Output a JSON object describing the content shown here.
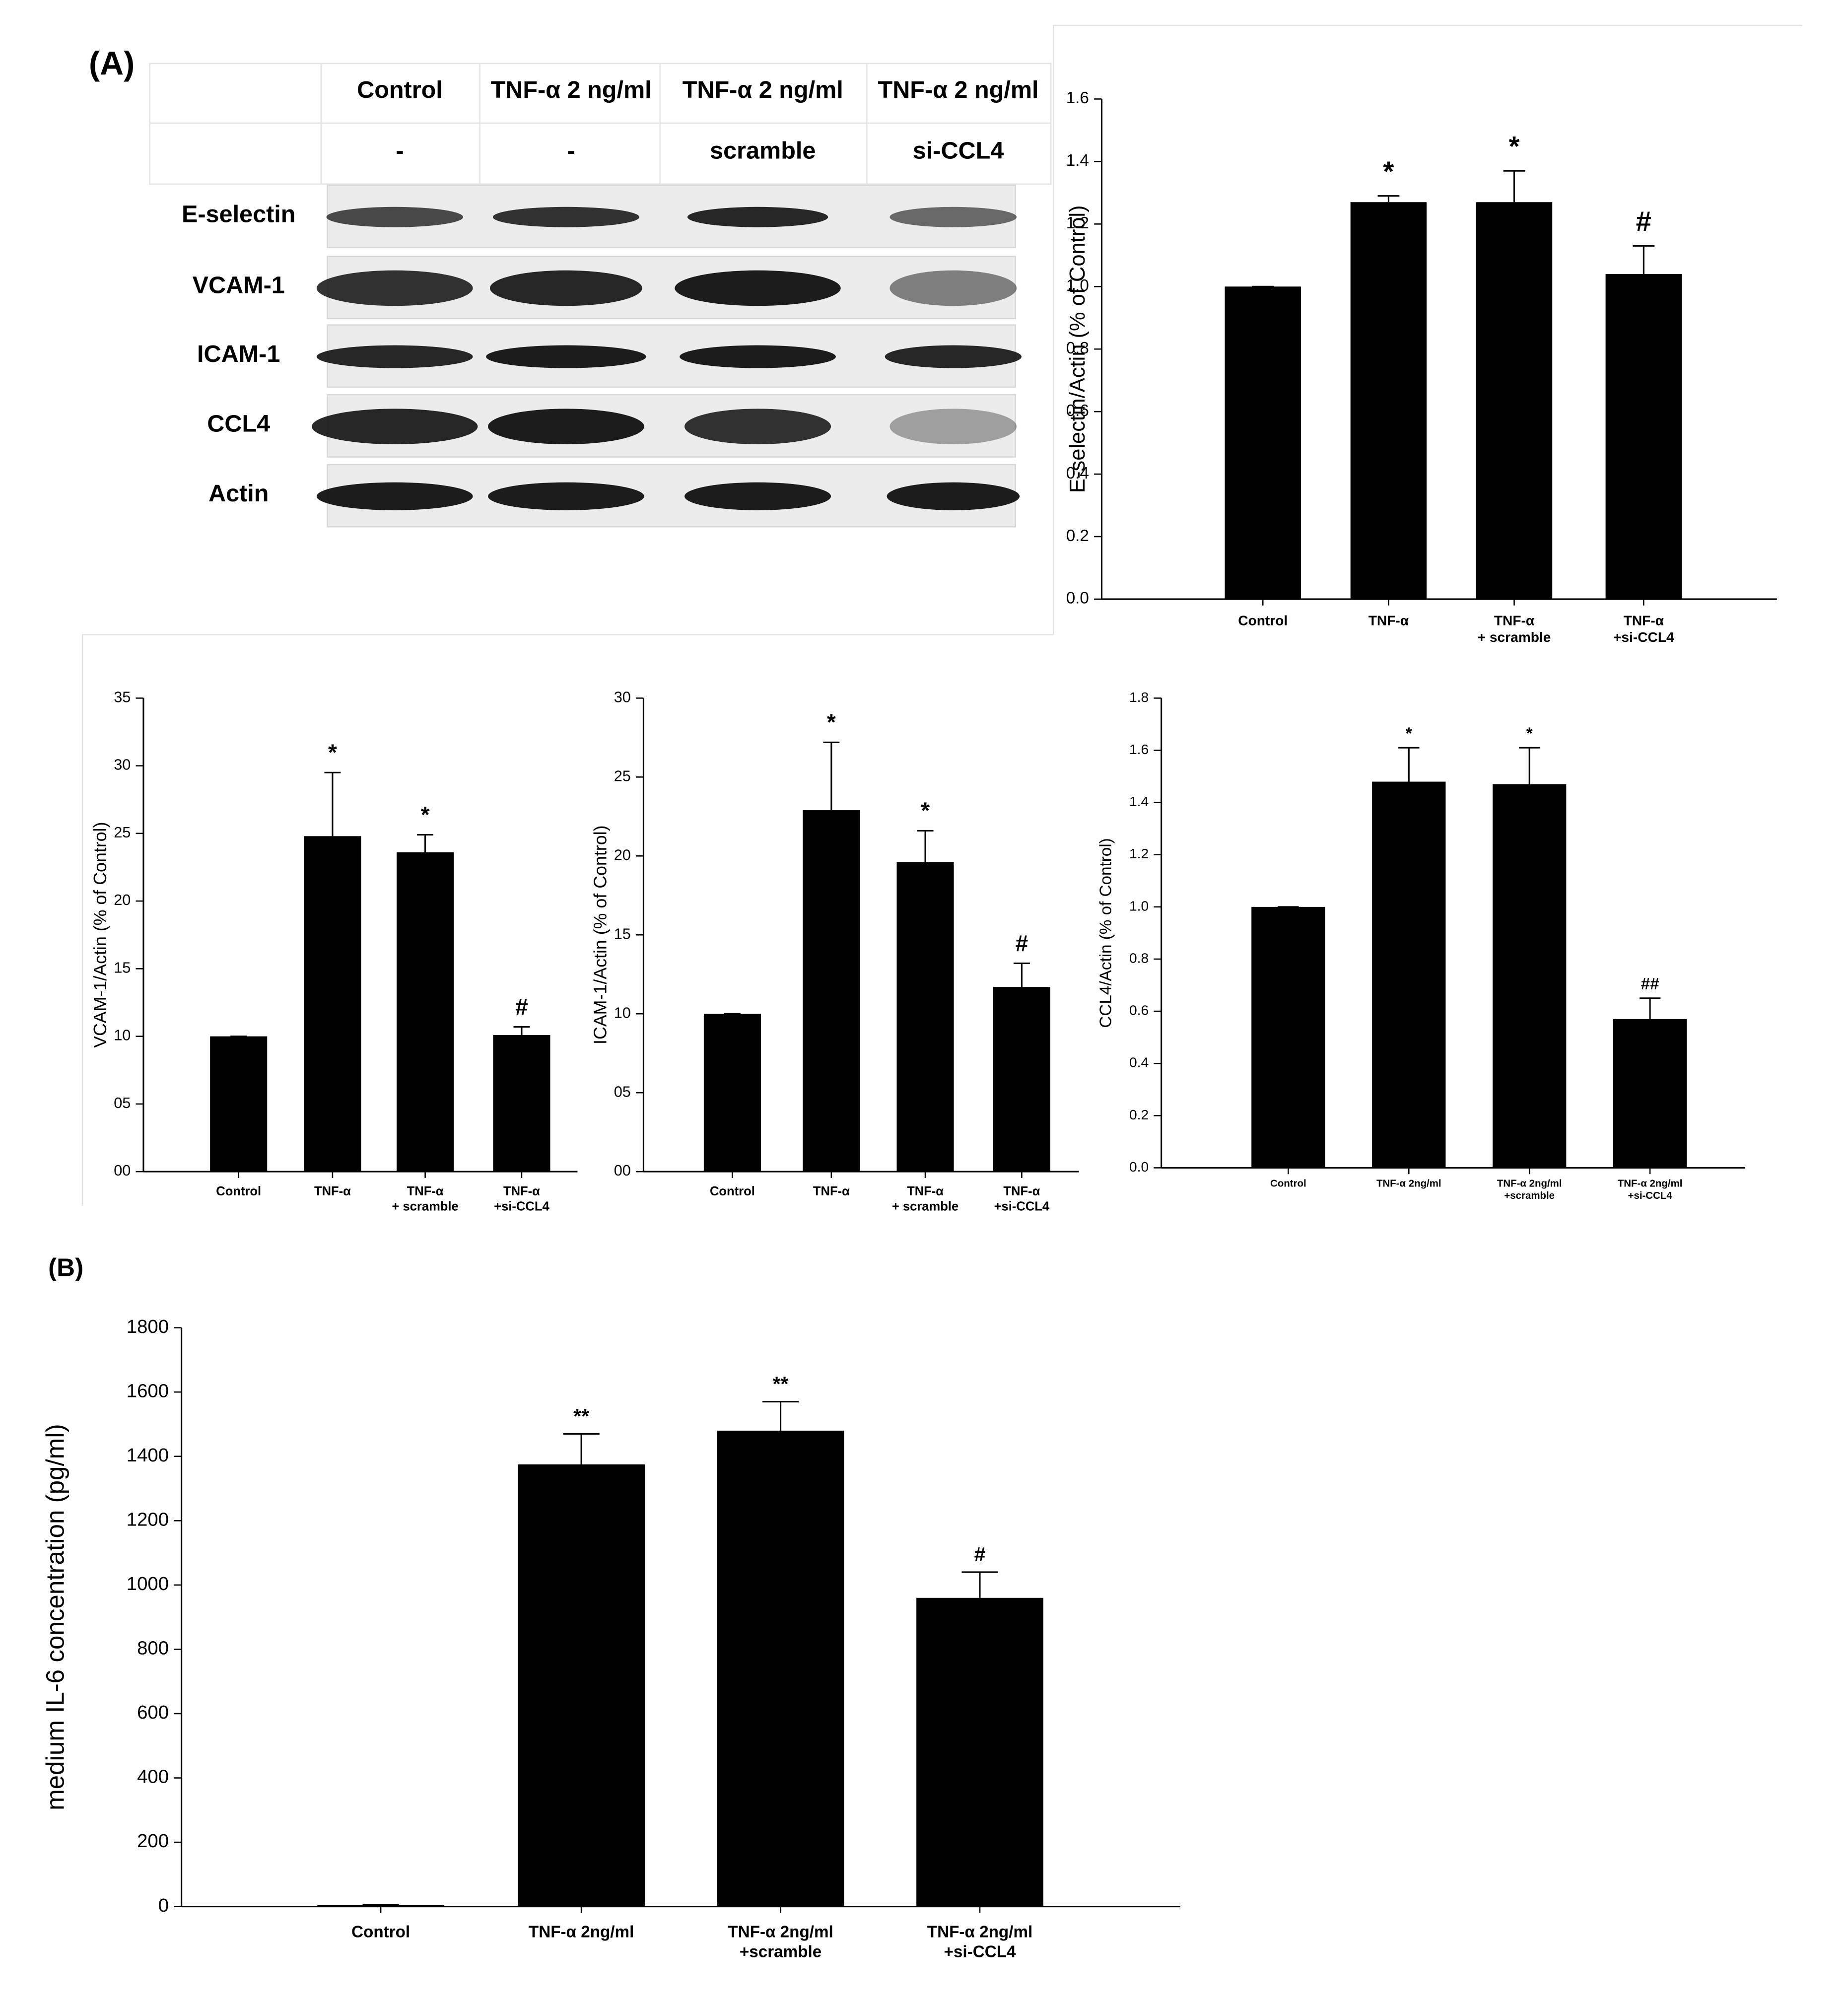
{
  "panel_labels": [
    "(A)",
    "(B)"
  ],
  "blot": {
    "columns": [
      "Control",
      "TNF-α 2 ng/ml",
      "TNF-α 2 ng/ml",
      "TNF-α 2 ng/ml"
    ],
    "treatment": [
      "-",
      "-",
      "scramble",
      "si-CCL4"
    ],
    "rows": [
      "E-selectin",
      "VCAM-1",
      "ICAM-1",
      "CCL4",
      "Actin"
    ]
  },
  "chart_data": [
    {
      "type": "bar",
      "y_label": "E-selectin/Actin (% of Control)",
      "categories": [
        [
          "Control"
        ],
        [
          "TNF-α"
        ],
        [
          "TNF-α",
          "+ scramble"
        ],
        [
          "TNF-α",
          "+si-CCL4"
        ]
      ],
      "values": [
        1.0,
        1.27,
        1.27,
        1.04
      ],
      "errors": [
        0,
        0.02,
        0.1,
        0.09
      ],
      "annotations": [
        null,
        "*",
        "*",
        "#"
      ],
      "color": "#000000",
      "ylim": [
        0,
        1.6
      ],
      "yticks": [
        {
          "value": 0,
          "label": "0.0"
        },
        0.2,
        0.4,
        0.6,
        0.8,
        {
          "value": 1,
          "label": "1.0"
        },
        1.2,
        1.4,
        1.6
      ]
    },
    {
      "type": "bar",
      "y_label": "VCAM-1/Actin (% of Control)",
      "categories": [
        [
          "Control"
        ],
        [
          "TNF-α"
        ],
        [
          "TNF-α",
          "+ scramble"
        ],
        [
          "TNF-α",
          "+si-CCL4"
        ]
      ],
      "values": [
        10,
        24.8,
        23.6,
        10.1
      ],
      "errors": [
        0,
        4.7,
        1.3,
        0.6
      ],
      "annotations": [
        null,
        "*",
        "*",
        "#"
      ],
      "color": "#000000",
      "ylim": [
        0,
        35
      ],
      "yticks": [
        {
          "value": 0,
          "label": "00"
        },
        {
          "value": 5,
          "label": "05"
        },
        10,
        15,
        20,
        25,
        30,
        35
      ]
    },
    {
      "type": "bar",
      "y_label": "ICAM-1/Actin (% of Control)",
      "categories": [
        [
          "Control"
        ],
        [
          "TNF-α"
        ],
        [
          "TNF-α",
          "+ scramble"
        ],
        [
          "TNF-α",
          "+si-CCL4"
        ]
      ],
      "values": [
        10,
        22.9,
        19.6,
        11.7
      ],
      "errors": [
        0,
        4.3,
        2.0,
        1.5
      ],
      "annotations": [
        null,
        "*",
        "*",
        "#"
      ],
      "color": "#000000",
      "ylim": [
        0,
        30
      ],
      "yticks": [
        {
          "value": 0,
          "label": "00"
        },
        {
          "value": 5,
          "label": "05"
        },
        10,
        15,
        20,
        25,
        30
      ]
    },
    {
      "type": "bar",
      "y_label": "CCL4/Actin (% of Control)",
      "categories": [
        [
          "Control"
        ],
        [
          "TNF-α 2ng/ml"
        ],
        [
          "TNF-α 2ng/ml",
          "+scramble"
        ],
        [
          "TNF-α 2ng/ml",
          "+si-CCL4"
        ]
      ],
      "values": [
        1.0,
        1.48,
        1.47,
        0.57
      ],
      "errors": [
        0,
        0.13,
        0.14,
        0.08
      ],
      "annotations": [
        null,
        "*",
        "*",
        "##"
      ],
      "color": "#000000",
      "ylim": [
        0,
        1.8
      ],
      "yticks": [
        {
          "value": 0,
          "label": "0.0"
        },
        0.2,
        0.4,
        0.6,
        0.8,
        {
          "value": 1,
          "label": "1.0"
        },
        1.2,
        1.4,
        1.6,
        1.8
      ]
    },
    {
      "type": "bar",
      "y_label": "medium IL-6 concentration (pg/ml)",
      "categories": [
        [
          "Control"
        ],
        [
          "TNF-α 2ng/ml"
        ],
        [
          "TNF-α 2ng/ml",
          "+scramble"
        ],
        [
          "TNF-α 2ng/ml",
          "+si-CCL4"
        ]
      ],
      "values": [
        5,
        1375,
        1480,
        960
      ],
      "errors": [
        0,
        95,
        90,
        80
      ],
      "annotations": [
        null,
        "**",
        "**",
        "#"
      ],
      "color": "#000000",
      "ylim": [
        0,
        1800
      ],
      "yticks": [
        0,
        200,
        400,
        600,
        800,
        1000,
        1200,
        1400,
        1600,
        1800
      ]
    }
  ]
}
